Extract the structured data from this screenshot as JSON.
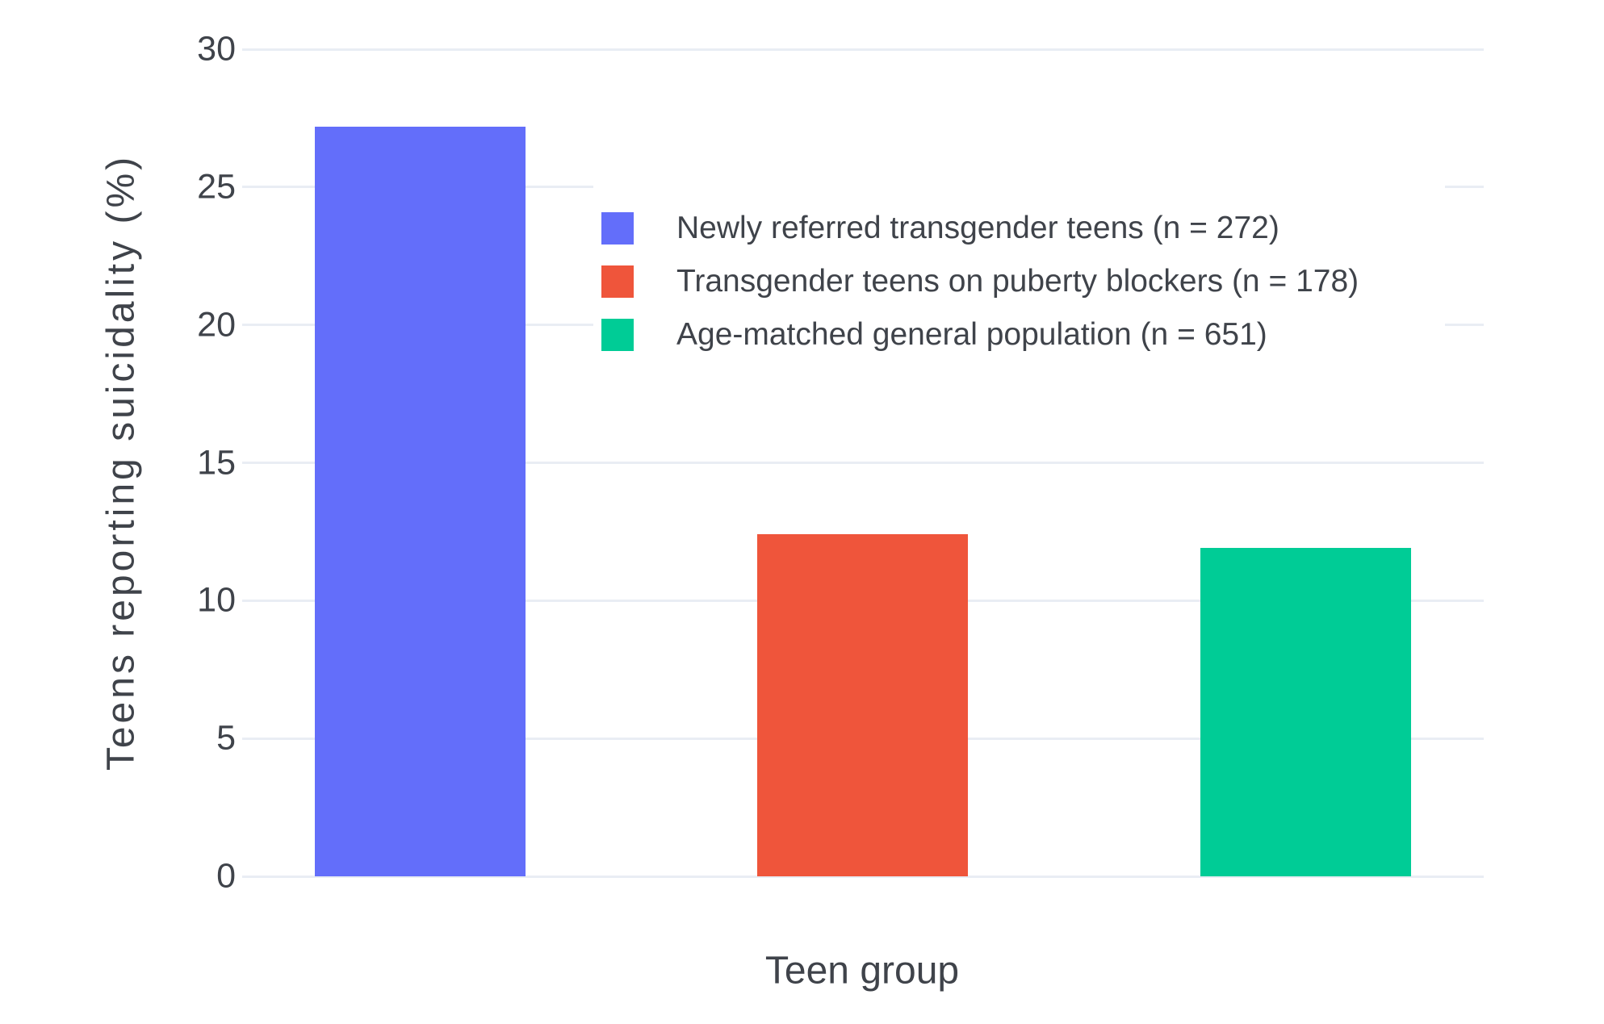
{
  "chart_data": {
    "type": "bar",
    "title": "",
    "xlabel": "Teen group",
    "ylabel": "Teens reporting suicidality (%)",
    "categories": [
      "Newly referred transgender teens (n = 272)",
      "Transgender teens on puberty blockers (n = 178)",
      "Age-matched general population (n = 651)"
    ],
    "series": [
      {
        "name": "Newly referred transgender teens (n = 272)",
        "value": 27.2,
        "color": "#636EFA"
      },
      {
        "name": "Transgender teens on puberty blockers (n = 178)",
        "value": 12.4,
        "color": "#EF553B"
      },
      {
        "name": "Age-matched general population (n = 651)",
        "value": 11.9,
        "color": "#00CC96"
      }
    ],
    "ylim": [
      0,
      30
    ],
    "yticks": [
      0,
      5,
      10,
      15,
      20,
      25,
      30
    ],
    "grid": true,
    "legend_position": "inside top, left-of-center",
    "colors": {
      "background": "#ffffff",
      "gridline": "#e9edf4",
      "text": "#3f434a"
    }
  }
}
